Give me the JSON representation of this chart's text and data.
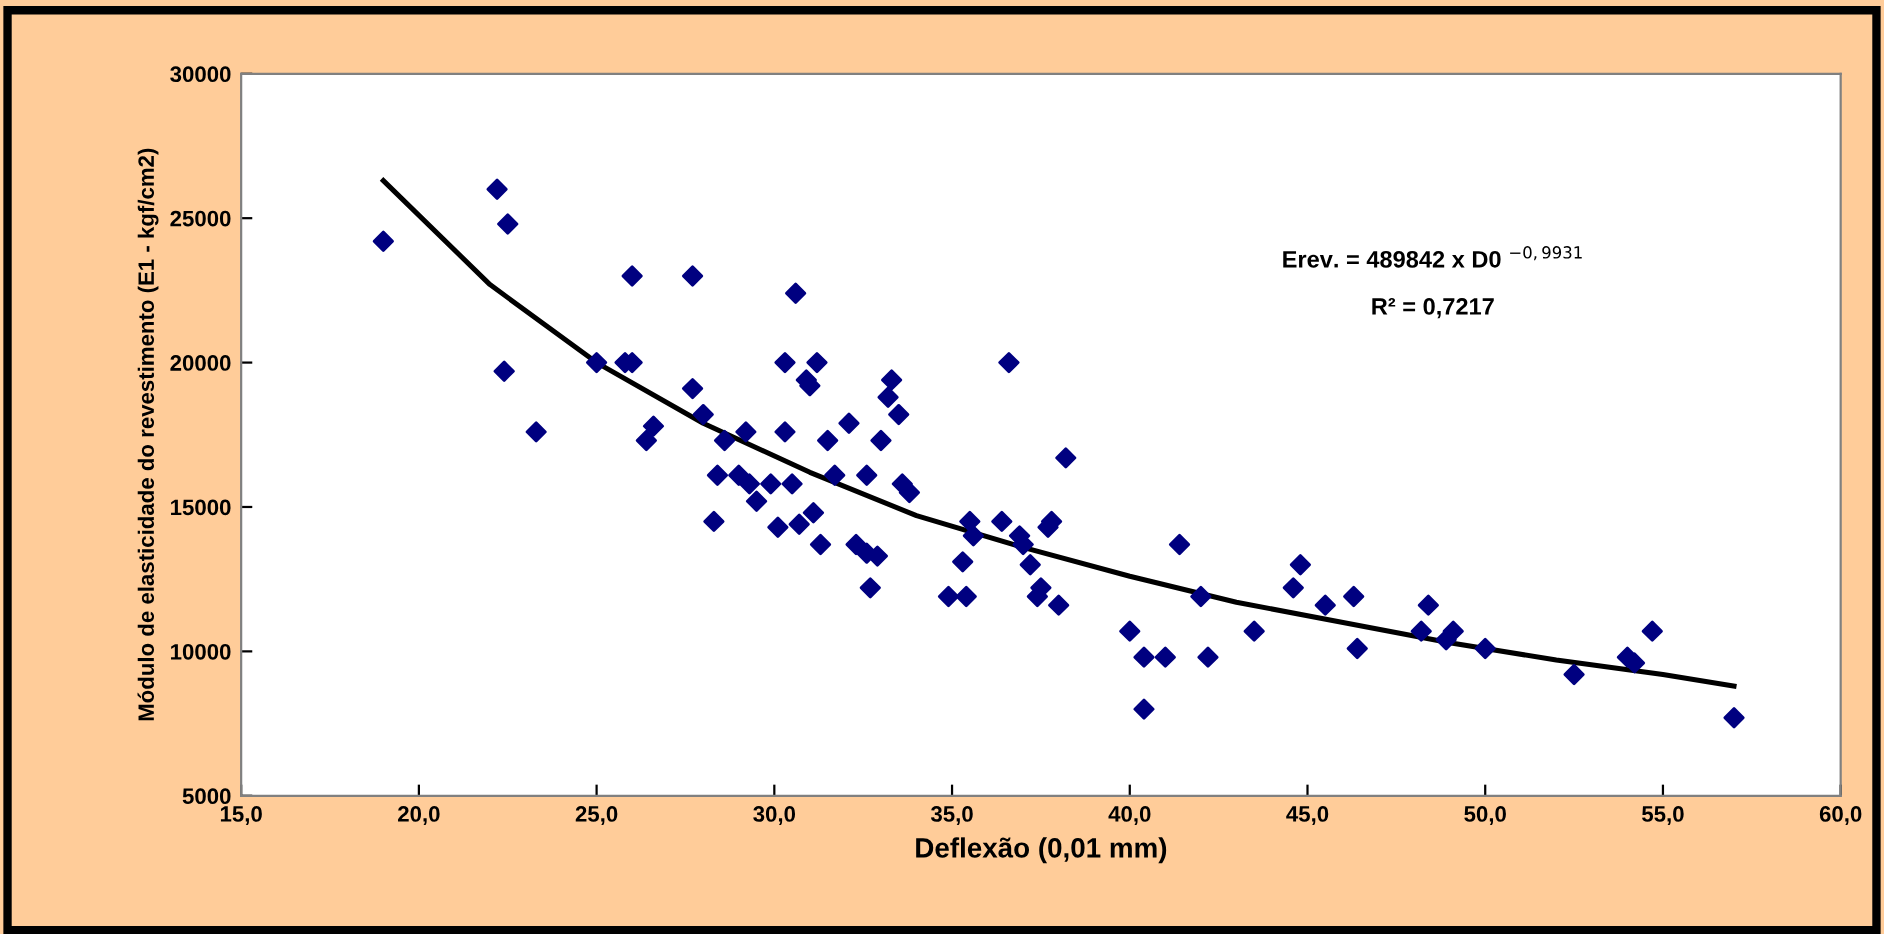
{
  "chart_data": {
    "type": "scatter",
    "xlabel": "Deflexão (0,01 mm)",
    "ylabel": "Módulo de elasticidade do revestimento (E1 - kgf/cm2)",
    "xlim": [
      15,
      60
    ],
    "xticks": [
      {
        "value": 15,
        "label": "15,0"
      },
      {
        "value": 20,
        "label": "20,0"
      },
      {
        "value": 25,
        "label": "25,0"
      },
      {
        "value": 30,
        "label": "30,0"
      },
      {
        "value": 35,
        "label": "35,0"
      },
      {
        "value": 40,
        "label": "40,0"
      },
      {
        "value": 45,
        "label": "45,0"
      },
      {
        "value": 50,
        "label": "50,0"
      },
      {
        "value": 55,
        "label": "55,0"
      },
      {
        "value": 60,
        "label": "60,0"
      }
    ],
    "ylim": [
      5000,
      30000
    ],
    "yticks": [
      5000,
      10000,
      15000,
      20000,
      25000,
      30000
    ],
    "grid": false,
    "legend": false,
    "marker": "diamond",
    "annotations": [
      "Erev. = 489842 x D0 $^{−0,9931}$",
      "R² = 0,7217"
    ],
    "series": [
      {
        "color": "#000080",
        "x": [
          19.0,
          22.2,
          22.5,
          22.4,
          23.3,
          25.0,
          25.8,
          26.0,
          26.0,
          26.4,
          26.6,
          27.7,
          27.7,
          28.0,
          28.3,
          28.4,
          28.6,
          29.0,
          29.2,
          29.3,
          29.5,
          29.9,
          30.1,
          30.3,
          30.3,
          30.5,
          30.6,
          30.7,
          30.9,
          31.0,
          31.1,
          31.2,
          31.3,
          31.5,
          31.7,
          32.1,
          32.3,
          32.6,
          32.6,
          32.7,
          32.9,
          33.0,
          33.2,
          33.3,
          33.5,
          33.6,
          33.8,
          34.9,
          35.3,
          35.4,
          35.5,
          35.6,
          36.4,
          36.6,
          36.9,
          37.0,
          37.2,
          37.4,
          37.5,
          37.7,
          37.8,
          38.0,
          38.2,
          40.0,
          40.4,
          40.4,
          41.0,
          41.4,
          42.0,
          42.2,
          43.5,
          44.6,
          44.8,
          45.5,
          46.3,
          46.4,
          48.2,
          48.4,
          48.9,
          49.1,
          50.0,
          52.5,
          54.0,
          54.2,
          54.7,
          57.0
        ],
        "values": [
          24200,
          26000,
          24800,
          19700,
          17600,
          20000,
          20000,
          20000,
          23000,
          17300,
          17800,
          23000,
          19100,
          18200,
          14500,
          16100,
          17300,
          16100,
          17600,
          15800,
          15200,
          15800,
          14300,
          17600,
          20000,
          15800,
          22400,
          14400,
          19400,
          19200,
          14800,
          20000,
          13700,
          17300,
          16100,
          17900,
          13700,
          16100,
          13400,
          12200,
          13300,
          17300,
          18800,
          19400,
          18200,
          15800,
          15500,
          11900,
          13100,
          11900,
          14500,
          14000,
          14500,
          20000,
          14000,
          13700,
          13000,
          11900,
          12200,
          14300,
          14500,
          11600,
          16700,
          10700,
          9800,
          8000,
          9800,
          13700,
          11900,
          9800,
          10700,
          12200,
          13000,
          11600,
          11900,
          10100,
          10700,
          11600,
          10400,
          10700,
          10100,
          9200,
          9800,
          9600,
          10700,
          7700
        ]
      },
      {
        "type": "line",
        "color": "#000000",
        "marker": "none",
        "line_style": "solid",
        "x": [
          19,
          22,
          25,
          28,
          31,
          34,
          37,
          40,
          43,
          46,
          49,
          52,
          55,
          57
        ],
        "values": [
          26300,
          22700,
          20000,
          17900,
          16200,
          14700,
          13600,
          12600,
          11700,
          11000,
          10300,
          9700,
          9200,
          8800
        ]
      }
    ]
  }
}
